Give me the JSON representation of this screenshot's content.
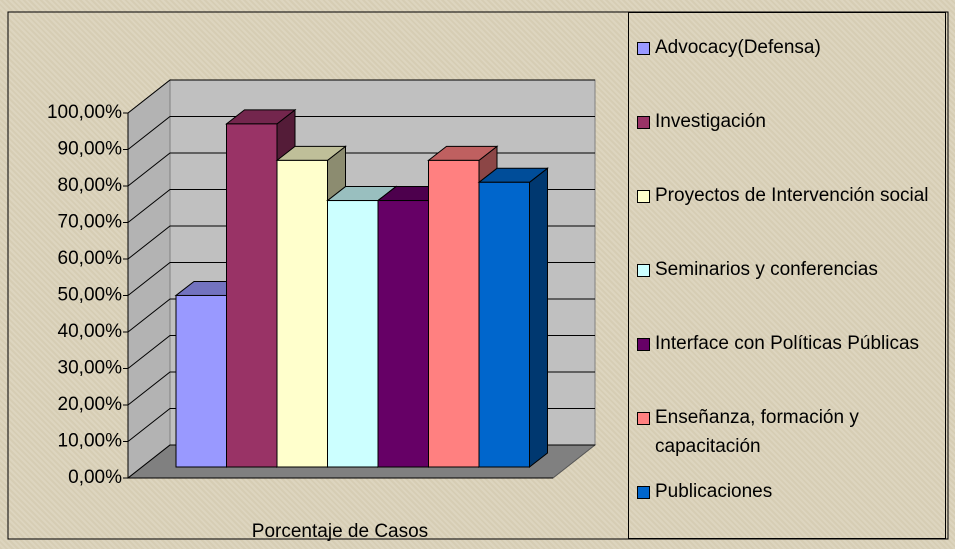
{
  "chart_data": {
    "type": "bar",
    "categories": [
      "Porcentaje de Casos"
    ],
    "series": [
      {
        "name": "Advocacy(Defensa)",
        "color": "#9999ff",
        "values": [
          47
        ]
      },
      {
        "name": "Investigación",
        "color": "#993366",
        "values": [
          94
        ]
      },
      {
        "name": "Proyectos de Intervención social",
        "color": "#ffffcc",
        "values": [
          84
        ]
      },
      {
        "name": "Seminarios y conferencias",
        "color": "#ccffff",
        "values": [
          73
        ]
      },
      {
        "name": "Interface con Políticas Públicas",
        "color": "#660066",
        "values": [
          73
        ]
      },
      {
        "name": "Enseñanza, formación y capacitación",
        "color": "#ff8080",
        "values": [
          84
        ]
      },
      {
        "name": "Publicaciones",
        "color": "#0066cc",
        "values": [
          78
        ]
      }
    ],
    "ylim": [
      0,
      100
    ],
    "yticks": [
      {
        "value": 0,
        "label": "0,00%"
      },
      {
        "value": 10,
        "label": "10,00%"
      },
      {
        "value": 20,
        "label": "20,00%"
      },
      {
        "value": 30,
        "label": "30,00%"
      },
      {
        "value": 40,
        "label": "40,00%"
      },
      {
        "value": 50,
        "label": "50,00%"
      },
      {
        "value": 60,
        "label": "60,00%"
      },
      {
        "value": 70,
        "label": "70,00%"
      },
      {
        "value": 80,
        "label": "80,00%"
      },
      {
        "value": 90,
        "label": "90,00%"
      },
      {
        "value": 100,
        "label": "100,00%"
      }
    ],
    "grid": true
  }
}
